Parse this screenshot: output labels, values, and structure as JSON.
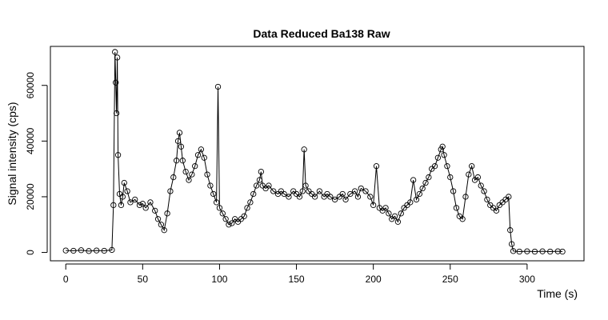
{
  "chart_data": {
    "type": "scatter",
    "title": "Data Reduced Ba138 Raw",
    "xlabel": "Time (s)",
    "ylabel": "Signal intensity (cps)",
    "xlim": [
      -10,
      337
    ],
    "ylim": [
      -3000,
      74000
    ],
    "x_ticks": [
      0,
      50,
      100,
      150,
      200,
      250,
      300
    ],
    "x_tick_labels": [
      "0",
      "50",
      "100",
      "150",
      "200",
      "250",
      "300"
    ],
    "y_ticks": [
      0,
      20000,
      40000,
      60000
    ],
    "y_tick_labels": [
      "0",
      "20000",
      "40000",
      "60000"
    ],
    "grid": false,
    "legend": "none",
    "marker": "open-circle",
    "connect_points": true,
    "colors": {
      "points": "#000000",
      "line": "#000000",
      "background": "#ffffff"
    },
    "series": [
      {
        "x": [
          0,
          5,
          10,
          15,
          20,
          25,
          30,
          31,
          32,
          32.5,
          33,
          33.5,
          34,
          35,
          36,
          37,
          38,
          40,
          42,
          45,
          48,
          50,
          52,
          55,
          58,
          60,
          62,
          64,
          66,
          68,
          70,
          72,
          73,
          74,
          75,
          76,
          78,
          80,
          82,
          84,
          86,
          88,
          90,
          92,
          94,
          96,
          98,
          99,
          100,
          102,
          104,
          106,
          108,
          110,
          112,
          114,
          116,
          118,
          120,
          122,
          124,
          126,
          127,
          128,
          130,
          132,
          135,
          138,
          140,
          142,
          145,
          148,
          150,
          152,
          154,
          155,
          156,
          158,
          160,
          162,
          165,
          168,
          170,
          172,
          175,
          178,
          180,
          182,
          185,
          188,
          190,
          192,
          195,
          198,
          200,
          202,
          204,
          206,
          208,
          210,
          212,
          214,
          216,
          218,
          220,
          222,
          224,
          226,
          228,
          230,
          232,
          234,
          236,
          238,
          240,
          242,
          244,
          245,
          246,
          248,
          250,
          252,
          254,
          256,
          258,
          260,
          262,
          264,
          266,
          268,
          270,
          272,
          274,
          276,
          278,
          280,
          282,
          284,
          286,
          288,
          289,
          290,
          291,
          295,
          300,
          305,
          310,
          315,
          320,
          323
        ],
        "y": [
          700,
          600,
          800,
          500,
          700,
          600,
          900,
          17000,
          72000,
          61000,
          50000,
          70000,
          35000,
          21000,
          17000,
          20000,
          25000,
          22000,
          18000,
          19000,
          17000,
          17500,
          16000,
          18000,
          15000,
          12000,
          10000,
          8000,
          14000,
          22000,
          27000,
          33000,
          40000,
          43000,
          38000,
          33000,
          29000,
          26000,
          28000,
          31000,
          35000,
          37000,
          34000,
          28000,
          24000,
          21000,
          18000,
          59500,
          16000,
          14000,
          12000,
          10000,
          10500,
          12000,
          11000,
          12000,
          13000,
          16000,
          18000,
          21000,
          24000,
          26000,
          29000,
          24000,
          23000,
          24000,
          22000,
          21000,
          22000,
          21000,
          20000,
          22000,
          21000,
          20000,
          22000,
          37000,
          24000,
          22000,
          21000,
          20000,
          22000,
          20000,
          21000,
          20000,
          19000,
          20000,
          21000,
          19000,
          21000,
          22000,
          20000,
          23000,
          22000,
          20000,
          17000,
          31000,
          16000,
          15000,
          16000,
          14000,
          12000,
          13000,
          11000,
          14000,
          16000,
          17000,
          18000,
          26000,
          19000,
          21000,
          23000,
          25000,
          27000,
          30000,
          31000,
          34000,
          37000,
          38000,
          35000,
          31000,
          27000,
          22000,
          16000,
          13000,
          12000,
          20000,
          28000,
          31000,
          26000,
          27000,
          24000,
          22000,
          19000,
          17000,
          16000,
          15000,
          17000,
          18000,
          19000,
          20000,
          8000,
          3000,
          500,
          300,
          400,
          300,
          400,
          300,
          400,
          300
        ]
      }
    ]
  }
}
